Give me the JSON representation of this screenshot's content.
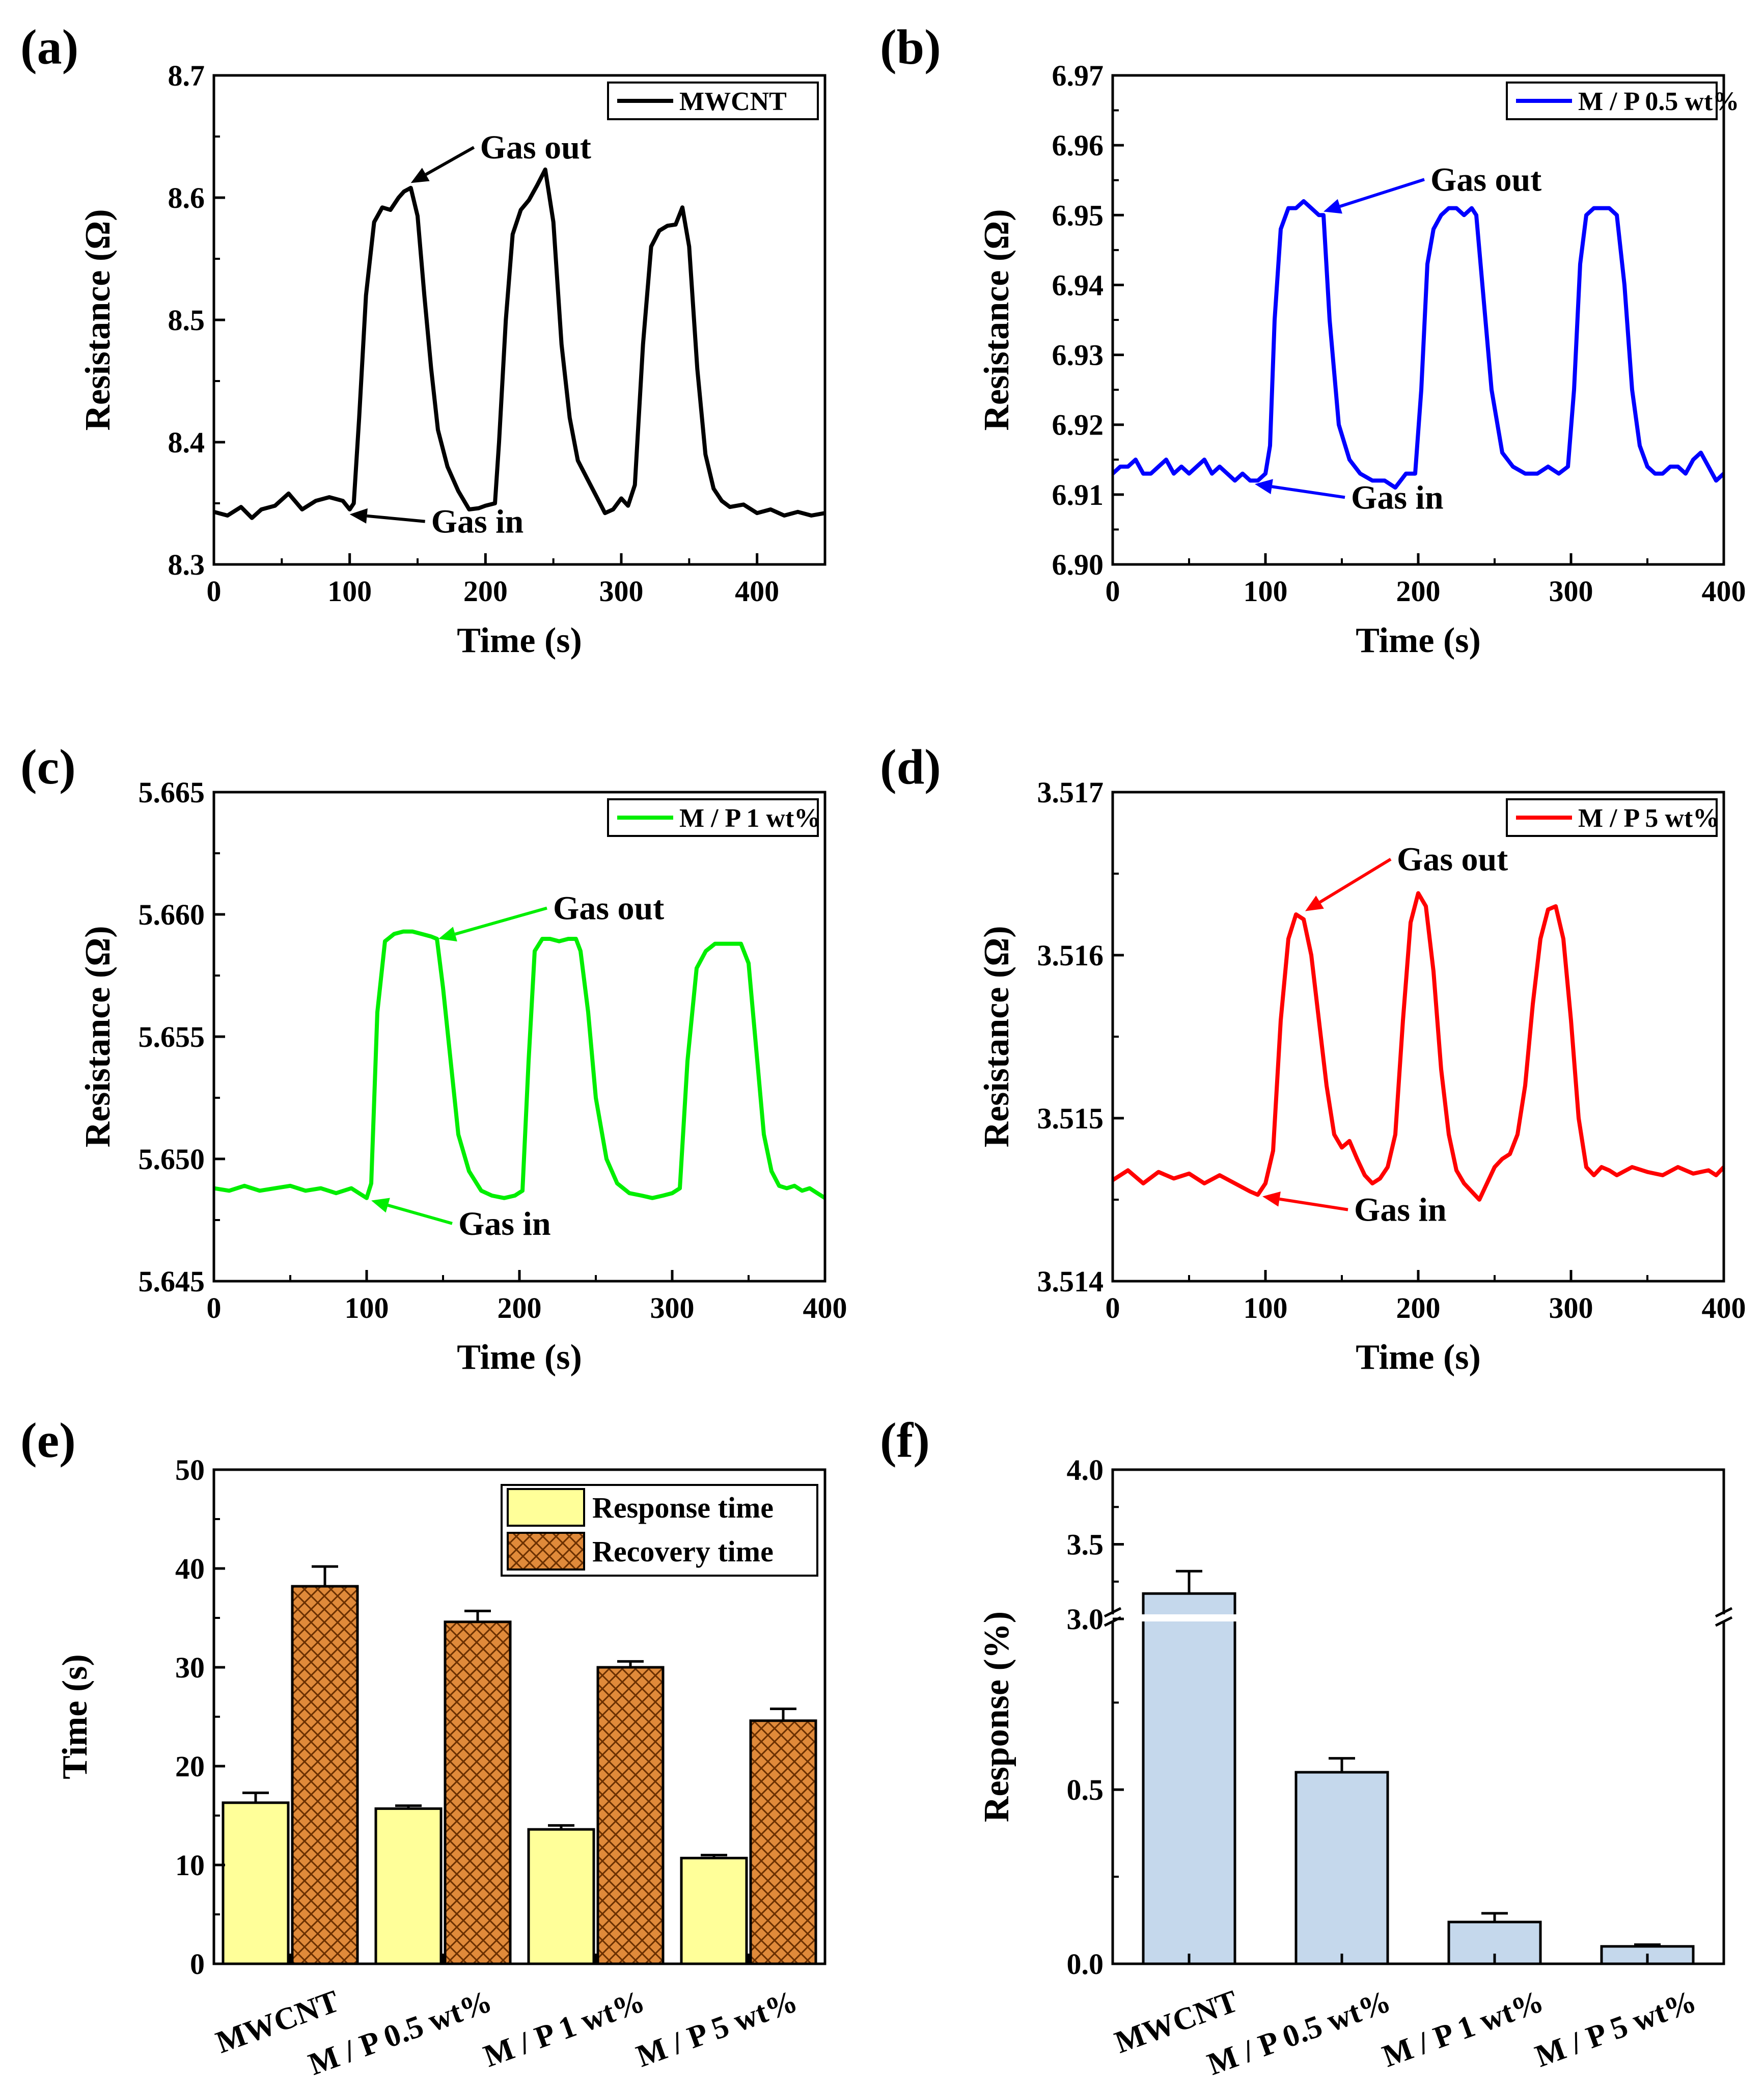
{
  "chart_data": [
    {
      "id": "a",
      "panel_label": "(a)",
      "type": "line",
      "xlabel": "Time (s)",
      "ylabel": "Resistance (Ω)",
      "xlim": [
        0,
        450
      ],
      "ylim": [
        8.3,
        8.7
      ],
      "xticks": [
        0,
        100,
        200,
        300,
        400
      ],
      "yticks": [
        8.3,
        8.4,
        8.5,
        8.6,
        8.7
      ],
      "ytick_labels": [
        "8.3",
        "8.4",
        "8.5",
        "8.6",
        "8.7"
      ],
      "legend": "top-right",
      "series": [
        {
          "name": "MWCNT",
          "color": "#000000",
          "x": [
            0,
            10,
            20,
            28,
            35,
            45,
            55,
            65,
            75,
            85,
            95,
            100,
            103,
            107,
            112,
            118,
            124,
            130,
            136,
            140,
            145,
            150,
            155,
            160,
            165,
            172,
            180,
            188,
            195,
            200,
            207,
            210,
            215,
            220,
            226,
            232,
            238,
            244,
            250,
            256,
            262,
            268,
            275,
            282,
            288,
            294,
            300,
            305,
            310,
            316,
            322,
            328,
            334,
            340,
            345,
            350,
            356,
            362,
            368,
            374,
            380,
            390,
            400,
            410,
            420,
            430,
            440,
            450
          ],
          "y": [
            8.343,
            8.34,
            8.347,
            8.338,
            8.345,
            8.348,
            8.358,
            8.345,
            8.352,
            8.355,
            8.352,
            8.345,
            8.35,
            8.42,
            8.52,
            8.58,
            8.592,
            8.59,
            8.6,
            8.605,
            8.608,
            8.585,
            8.52,
            8.46,
            8.41,
            8.38,
            8.36,
            8.345,
            8.346,
            8.348,
            8.35,
            8.4,
            8.5,
            8.57,
            8.59,
            8.598,
            8.61,
            8.623,
            8.58,
            8.48,
            8.42,
            8.385,
            8.37,
            8.355,
            8.342,
            8.345,
            8.354,
            8.348,
            8.365,
            8.48,
            8.56,
            8.573,
            8.577,
            8.578,
            8.592,
            8.56,
            8.46,
            8.39,
            8.362,
            8.352,
            8.347,
            8.349,
            8.342,
            8.345,
            8.34,
            8.343,
            8.34,
            8.342
          ]
        }
      ],
      "annotations": [
        {
          "text": "Gas out",
          "x": 196,
          "y": 8.632,
          "arrow_to": [
            145,
            8.612
          ]
        },
        {
          "text": "Gas in",
          "x": 160,
          "y": 8.326,
          "arrow_to": [
            100,
            8.341
          ]
        }
      ]
    },
    {
      "id": "b",
      "panel_label": "(b)",
      "type": "line",
      "xlabel": "Time (s)",
      "ylabel": "Resistance (Ω)",
      "xlim": [
        0,
        400
      ],
      "ylim": [
        6.9,
        6.97
      ],
      "xticks": [
        0,
        100,
        200,
        300,
        400
      ],
      "yticks": [
        6.9,
        6.91,
        6.92,
        6.93,
        6.94,
        6.95,
        6.96,
        6.97
      ],
      "ytick_labels": [
        "6.90",
        "6.91",
        "6.92",
        "6.93",
        "6.94",
        "6.95",
        "6.96",
        "6.97"
      ],
      "legend": "top-right",
      "series": [
        {
          "name": "M / P 0.5 wt%",
          "color": "#0000ff",
          "x": [
            0,
            5,
            10,
            15,
            20,
            25,
            30,
            35,
            40,
            45,
            50,
            55,
            60,
            65,
            70,
            75,
            80,
            85,
            90,
            95,
            100,
            103,
            106,
            110,
            115,
            120,
            125,
            130,
            135,
            138,
            142,
            148,
            155,
            162,
            170,
            178,
            185,
            192,
            198,
            202,
            206,
            210,
            215,
            220,
            225,
            230,
            235,
            238,
            242,
            248,
            255,
            262,
            270,
            278,
            285,
            292,
            298,
            302,
            306,
            310,
            315,
            320,
            325,
            330,
            335,
            340,
            345,
            350,
            355,
            360,
            365,
            370,
            375,
            380,
            385,
            390,
            395,
            400
          ],
          "y": [
            6.913,
            6.914,
            6.914,
            6.915,
            6.913,
            6.913,
            6.914,
            6.915,
            6.913,
            6.914,
            6.913,
            6.914,
            6.915,
            6.913,
            6.914,
            6.913,
            6.912,
            6.913,
            6.912,
            6.912,
            6.913,
            6.917,
            6.935,
            6.948,
            6.951,
            6.951,
            6.952,
            6.951,
            6.95,
            6.95,
            6.935,
            6.92,
            6.915,
            6.913,
            6.912,
            6.912,
            6.911,
            6.913,
            6.913,
            6.925,
            6.943,
            6.948,
            6.95,
            6.951,
            6.951,
            6.95,
            6.951,
            6.95,
            6.94,
            6.925,
            6.916,
            6.914,
            6.913,
            6.913,
            6.914,
            6.913,
            6.914,
            6.925,
            6.943,
            6.95,
            6.951,
            6.951,
            6.951,
            6.95,
            6.94,
            6.925,
            6.917,
            6.914,
            6.913,
            6.913,
            6.914,
            6.914,
            6.913,
            6.915,
            6.916,
            6.914,
            6.912,
            6.913
          ]
        }
      ],
      "annotations": [
        {
          "text": "Gas out",
          "x": 208,
          "y": 6.9535,
          "arrow_to": [
            138,
            6.9505
          ]
        },
        {
          "text": "Gas in",
          "x": 156,
          "y": 6.908,
          "arrow_to": [
            93,
            6.9115
          ]
        }
      ]
    },
    {
      "id": "c",
      "panel_label": "(c)",
      "type": "line",
      "xlabel": "Time (s)",
      "ylabel": "Resistance (Ω)",
      "xlim": [
        0,
        400
      ],
      "ylim": [
        5.645,
        5.665
      ],
      "xticks": [
        0,
        100,
        200,
        300,
        400
      ],
      "yticks": [
        5.645,
        5.65,
        5.655,
        5.66,
        5.665
      ],
      "ytick_labels": [
        "5.645",
        "5.650",
        "5.655",
        "5.660",
        "5.665"
      ],
      "legend": "top-right",
      "series": [
        {
          "name": "M / P 1 wt%",
          "color": "#00ee00",
          "x": [
            0,
            10,
            20,
            30,
            40,
            50,
            60,
            70,
            80,
            90,
            95,
            100,
            103,
            107,
            112,
            118,
            124,
            130,
            136,
            142,
            146,
            150,
            155,
            160,
            167,
            175,
            182,
            190,
            197,
            202,
            206,
            210,
            215,
            220,
            226,
            232,
            237,
            240,
            245,
            250,
            257,
            264,
            272,
            280,
            287,
            294,
            300,
            305,
            310,
            316,
            322,
            328,
            334,
            340,
            345,
            350,
            355,
            360,
            365,
            370,
            375,
            380,
            385,
            390,
            395,
            400
          ],
          "y": [
            5.6488,
            5.6487,
            5.6489,
            5.6487,
            5.6488,
            5.6489,
            5.6487,
            5.6488,
            5.6486,
            5.6488,
            5.6486,
            5.6484,
            5.649,
            5.656,
            5.6589,
            5.6592,
            5.6593,
            5.6593,
            5.6592,
            5.6591,
            5.659,
            5.657,
            5.654,
            5.651,
            5.6495,
            5.6487,
            5.6485,
            5.6484,
            5.6485,
            5.6487,
            5.654,
            5.6585,
            5.659,
            5.659,
            5.6589,
            5.659,
            5.659,
            5.6585,
            5.656,
            5.6525,
            5.65,
            5.649,
            5.6486,
            5.6485,
            5.6484,
            5.6485,
            5.6486,
            5.6488,
            5.654,
            5.6578,
            5.6585,
            5.6588,
            5.6588,
            5.6588,
            5.6588,
            5.658,
            5.6545,
            5.651,
            5.6495,
            5.6489,
            5.6488,
            5.6489,
            5.6487,
            5.6488,
            5.6486,
            5.6484
          ]
        }
      ],
      "annotations": [
        {
          "text": "Gas out",
          "x": 222,
          "y": 5.6598,
          "arrow_to": [
            147,
            5.659
          ]
        },
        {
          "text": "Gas in",
          "x": 160,
          "y": 5.6469,
          "arrow_to": [
            103,
            5.6483
          ]
        }
      ]
    },
    {
      "id": "d",
      "panel_label": "(d)",
      "type": "line",
      "xlabel": "Time (s)",
      "ylabel": "Resistance (Ω)",
      "xlim": [
        0,
        400
      ],
      "ylim": [
        3.514,
        3.517
      ],
      "xticks": [
        0,
        100,
        200,
        300,
        400
      ],
      "yticks": [
        3.514,
        3.515,
        3.516,
        3.517
      ],
      "ytick_labels": [
        "3.514",
        "3.515",
        "3.516",
        "3.517"
      ],
      "legend": "top-right",
      "series": [
        {
          "name": "M / P 5 wt%",
          "color": "#ff0000",
          "x": [
            0,
            10,
            20,
            30,
            40,
            50,
            60,
            70,
            80,
            90,
            95,
            100,
            105,
            110,
            115,
            120,
            125,
            130,
            135,
            140,
            145,
            150,
            155,
            160,
            165,
            170,
            175,
            180,
            185,
            190,
            195,
            200,
            205,
            210,
            215,
            220,
            225,
            230,
            235,
            240,
            245,
            250,
            255,
            260,
            265,
            270,
            275,
            280,
            285,
            290,
            295,
            300,
            305,
            310,
            315,
            320,
            325,
            330,
            340,
            350,
            360,
            370,
            380,
            390,
            395,
            400
          ],
          "y": [
            3.51462,
            3.51468,
            3.5146,
            3.51467,
            3.51463,
            3.51466,
            3.5146,
            3.51465,
            3.5146,
            3.51455,
            3.51453,
            3.5146,
            3.5148,
            3.5156,
            3.5161,
            3.51625,
            3.51622,
            3.516,
            3.5156,
            3.5152,
            3.5149,
            3.51482,
            3.51486,
            3.51475,
            3.51465,
            3.5146,
            3.51463,
            3.5147,
            3.5149,
            3.5156,
            3.5162,
            3.51638,
            3.5163,
            3.5159,
            3.5153,
            3.5149,
            3.51468,
            3.5146,
            3.51455,
            3.5145,
            3.5146,
            3.5147,
            3.51475,
            3.51478,
            3.5149,
            3.5152,
            3.5157,
            3.5161,
            3.51628,
            3.5163,
            3.5161,
            3.5156,
            3.515,
            3.5147,
            3.51465,
            3.5147,
            3.51468,
            3.51465,
            3.5147,
            3.51467,
            3.51465,
            3.5147,
            3.51466,
            3.51468,
            3.51465,
            3.5147
          ]
        }
      ],
      "annotations": [
        {
          "text": "Gas out",
          "x": 186,
          "y": 3.51652,
          "arrow_to": [
            126,
            3.51627
          ]
        },
        {
          "text": "Gas in",
          "x": 158,
          "y": 3.51437,
          "arrow_to": [
            98,
            3.51452
          ]
        }
      ]
    },
    {
      "id": "e",
      "panel_label": "(e)",
      "type": "bar",
      "xlabel": "",
      "ylabel": "Time (s)",
      "ylim": [
        0,
        50
      ],
      "yticks": [
        0,
        10,
        20,
        30,
        40,
        50
      ],
      "ytick_labels": [
        "0",
        "10",
        "20",
        "30",
        "40",
        "50"
      ],
      "categories": [
        "MWCNT",
        "M / P 0.5 wt%",
        "M / P 1 wt%",
        "M / P 5 wt%"
      ],
      "legend": "top-right",
      "series": [
        {
          "name": "Response time",
          "color": "#ffff99",
          "values": [
            16.3,
            15.7,
            13.6,
            10.7
          ],
          "errors": [
            1.0,
            0.3,
            0.4,
            0.3
          ]
        },
        {
          "name": "Recovery time",
          "color": "#e08a3a",
          "values": [
            38.2,
            34.6,
            30.0,
            24.6
          ],
          "errors": [
            2.0,
            1.1,
            0.6,
            1.2
          ]
        }
      ]
    },
    {
      "id": "f",
      "panel_label": "(f)",
      "type": "bar",
      "xlabel": "",
      "ylabel": "Response (%)",
      "axis_break": [
        0.98,
        3.0
      ],
      "yticks": [
        0.0,
        0.5,
        3.0,
        3.5,
        4.0
      ],
      "ytick_labels": [
        "0.0",
        "0.5",
        "3.0",
        "3.5",
        "4.0"
      ],
      "categories": [
        "MWCNT",
        "M / P 0.5 wt%",
        "M / P 1 wt%",
        "M / P 5 wt%"
      ],
      "series": [
        {
          "name": "Response",
          "color": "#c5d8ec",
          "values": [
            3.17,
            0.55,
            0.12,
            0.05
          ],
          "errors": [
            0.15,
            0.04,
            0.025,
            0.005
          ]
        }
      ]
    }
  ]
}
